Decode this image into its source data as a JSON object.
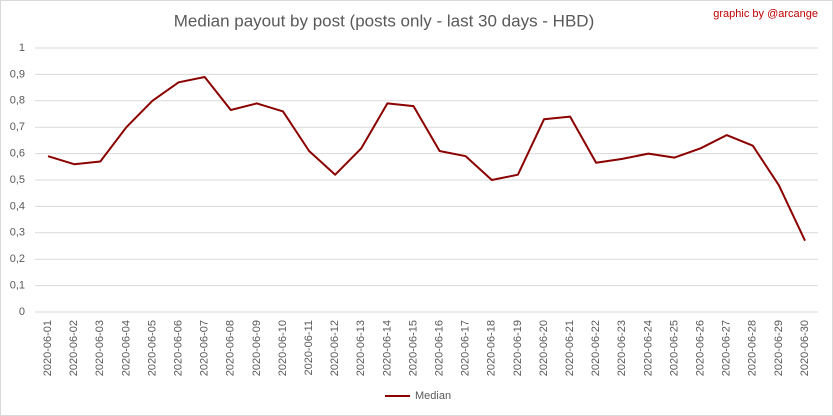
{
  "chart_data": {
    "type": "line",
    "title": "Median payout by post (posts only - last 30 days - HBD)",
    "annotation": "graphic by @arcange",
    "categories": [
      "2020-06-01",
      "2020-06-02",
      "2020-06-03",
      "2020-06-04",
      "2020-06-05",
      "2020-06-06",
      "2020-06-07",
      "2020-06-08",
      "2020-06-09",
      "2020-06-10",
      "2020-06-11",
      "2020-06-12",
      "2020-06-13",
      "2020-06-14",
      "2020-06-15",
      "2020-06-16",
      "2020-06-17",
      "2020-06-18",
      "2020-06-19",
      "2020-06-20",
      "2020-06-21",
      "2020-06-22",
      "2020-06-23",
      "2020-06-24",
      "2020-06-25",
      "2020-06-26",
      "2020-06-27",
      "2020-06-28",
      "2020-06-29",
      "2020-06-30"
    ],
    "series": [
      {
        "name": "Median",
        "color": "#8b0000",
        "values": [
          0.59,
          0.56,
          0.57,
          0.7,
          0.8,
          0.87,
          0.89,
          0.765,
          0.79,
          0.76,
          0.61,
          0.52,
          0.62,
          0.79,
          0.78,
          0.61,
          0.59,
          0.5,
          0.52,
          0.73,
          0.74,
          0.565,
          0.58,
          0.6,
          0.585,
          0.62,
          0.67,
          0.63,
          0.48,
          0.27
        ]
      }
    ],
    "ylim": [
      0,
      1
    ],
    "yticks": [
      0,
      {
        "value": 0.1,
        "label": "0,1"
      },
      {
        "value": 0.2,
        "label": "0,2"
      },
      {
        "value": 0.3,
        "label": "0,3"
      },
      {
        "value": 0.4,
        "label": "0,4"
      },
      {
        "value": 0.5,
        "label": "0,5"
      },
      {
        "value": 0.6,
        "label": "0,6"
      },
      {
        "value": 0.7,
        "label": "0,7"
      },
      {
        "value": 0.8,
        "label": "0,8"
      },
      {
        "value": 0.9,
        "label": "0,9"
      },
      1
    ],
    "grid": true,
    "legend": "bottom"
  }
}
